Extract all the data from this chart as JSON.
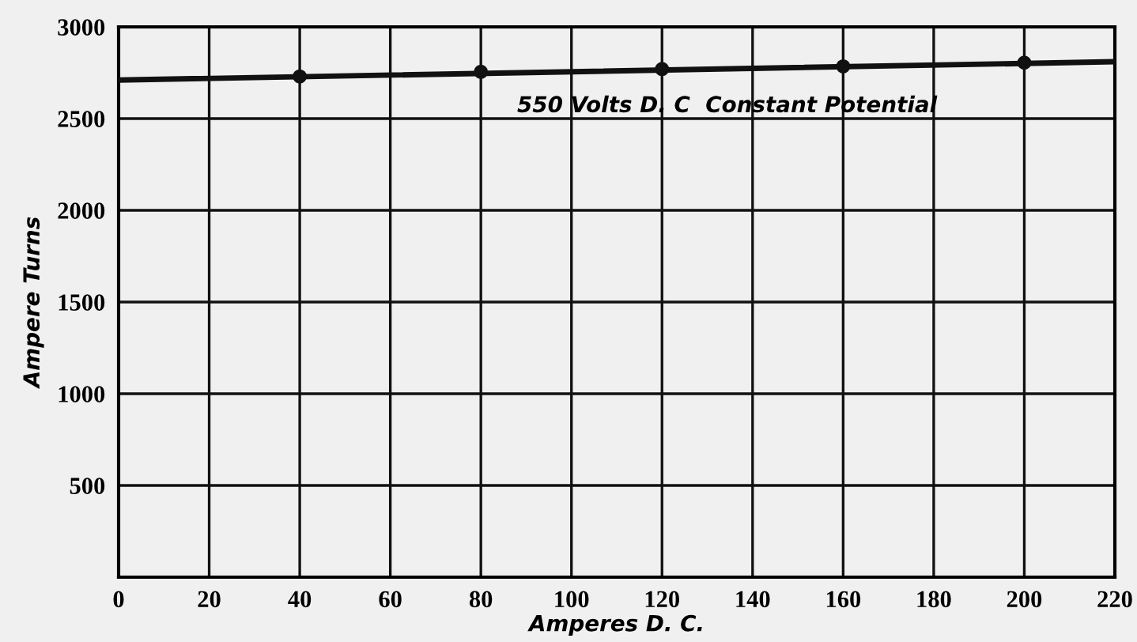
{
  "chart_data": {
    "type": "line",
    "xlabel": "Amperes D. C.",
    "ylabel": "Ampere Turns",
    "annotations": [
      "550 Volts D. C  Constant Potential"
    ],
    "series": [
      {
        "color": "#111111",
        "x": [
          0,
          220
        ],
        "values": [
          2710,
          2810
        ],
        "marker": "none"
      },
      {
        "type": "scatter",
        "color": "#111111",
        "x": [
          40,
          80,
          120,
          160,
          200
        ],
        "values": [
          2730,
          2755,
          2770,
          2785,
          2805
        ],
        "marker": "circle"
      }
    ],
    "xlim": [
      0,
      220
    ],
    "xticks": [
      0,
      20,
      40,
      60,
      80,
      100,
      120,
      140,
      160,
      180,
      200,
      220
    ],
    "ylim": [
      0,
      3000
    ],
    "yticks": [
      {
        "value": 0,
        "label": null
      },
      500,
      1000,
      1500,
      2000,
      2500,
      3000
    ],
    "grid": true
  }
}
